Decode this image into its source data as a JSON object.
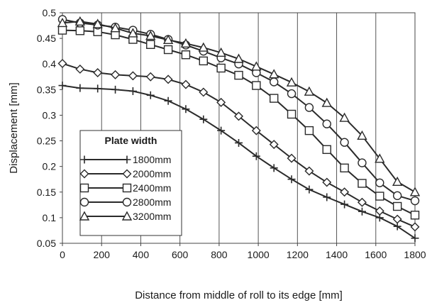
{
  "chart_data": {
    "type": "line",
    "xlabel": "Distance from middle of roll to its edge [mm]",
    "ylabel": "Displacement [mm]",
    "xlim": [
      0,
      1800
    ],
    "ylim": [
      0.05,
      0.5
    ],
    "xticks": [
      0,
      200,
      400,
      600,
      800,
      1000,
      1200,
      1400,
      1600,
      1800
    ],
    "yticks": [
      0.05,
      0.1,
      0.15,
      0.2,
      0.25,
      0.3,
      0.35,
      0.4,
      0.45,
      0.5
    ],
    "ytick_labels": [
      "0.05",
      "0.1",
      "0.15",
      "0.2",
      "0.25",
      "0.3",
      "0.35",
      "0.4",
      "0.45",
      "0.5"
    ],
    "grid": "vertical",
    "legend": {
      "title": "Plate width",
      "position": "bottom-left"
    },
    "line_color": "#2a2a2a",
    "series": [
      {
        "name": "1800mm",
        "marker": "plus",
        "x": [
          0,
          90,
          180,
          270,
          360,
          450,
          540,
          630,
          720,
          810,
          900,
          990,
          1080,
          1170,
          1260,
          1350,
          1440,
          1530,
          1620,
          1710,
          1800
        ],
        "y": [
          0.358,
          0.353,
          0.352,
          0.35,
          0.347,
          0.339,
          0.328,
          0.312,
          0.292,
          0.27,
          0.246,
          0.22,
          0.197,
          0.175,
          0.155,
          0.14,
          0.126,
          0.112,
          0.1,
          0.083,
          0.06
        ]
      },
      {
        "name": "2000mm",
        "marker": "diamond",
        "x": [
          0,
          90,
          180,
          270,
          360,
          450,
          540,
          630,
          720,
          810,
          900,
          990,
          1080,
          1170,
          1260,
          1350,
          1440,
          1530,
          1620,
          1710,
          1800
        ],
        "y": [
          0.401,
          0.39,
          0.383,
          0.379,
          0.377,
          0.375,
          0.37,
          0.36,
          0.345,
          0.325,
          0.298,
          0.27,
          0.243,
          0.216,
          0.191,
          0.169,
          0.15,
          0.13,
          0.113,
          0.097,
          0.082
        ]
      },
      {
        "name": "2400mm",
        "marker": "square",
        "x": [
          0,
          90,
          180,
          270,
          360,
          450,
          540,
          630,
          720,
          810,
          900,
          990,
          1080,
          1170,
          1260,
          1350,
          1440,
          1530,
          1620,
          1710,
          1800
        ],
        "y": [
          0.466,
          0.465,
          0.463,
          0.457,
          0.448,
          0.438,
          0.428,
          0.418,
          0.406,
          0.392,
          0.378,
          0.358,
          0.333,
          0.302,
          0.27,
          0.233,
          0.197,
          0.167,
          0.142,
          0.122,
          0.105
        ]
      },
      {
        "name": "2800mm",
        "marker": "circle",
        "x": [
          0,
          90,
          180,
          270,
          360,
          450,
          540,
          630,
          720,
          810,
          900,
          990,
          1080,
          1170,
          1260,
          1350,
          1440,
          1530,
          1620,
          1710,
          1800
        ],
        "y": [
          0.487,
          0.48,
          0.476,
          0.472,
          0.466,
          0.458,
          0.448,
          0.437,
          0.425,
          0.412,
          0.4,
          0.383,
          0.365,
          0.342,
          0.315,
          0.283,
          0.247,
          0.207,
          0.168,
          0.143,
          0.133
        ]
      },
      {
        "name": "3200mm",
        "marker": "triangle",
        "x": [
          0,
          90,
          180,
          270,
          360,
          450,
          540,
          630,
          720,
          810,
          900,
          990,
          1080,
          1170,
          1260,
          1350,
          1440,
          1530,
          1620,
          1710,
          1800
        ],
        "y": [
          0.48,
          0.483,
          0.478,
          0.47,
          0.46,
          0.455,
          0.447,
          0.44,
          0.432,
          0.422,
          0.41,
          0.395,
          0.38,
          0.364,
          0.346,
          0.324,
          0.295,
          0.26,
          0.215,
          0.17,
          0.15
        ]
      }
    ]
  }
}
